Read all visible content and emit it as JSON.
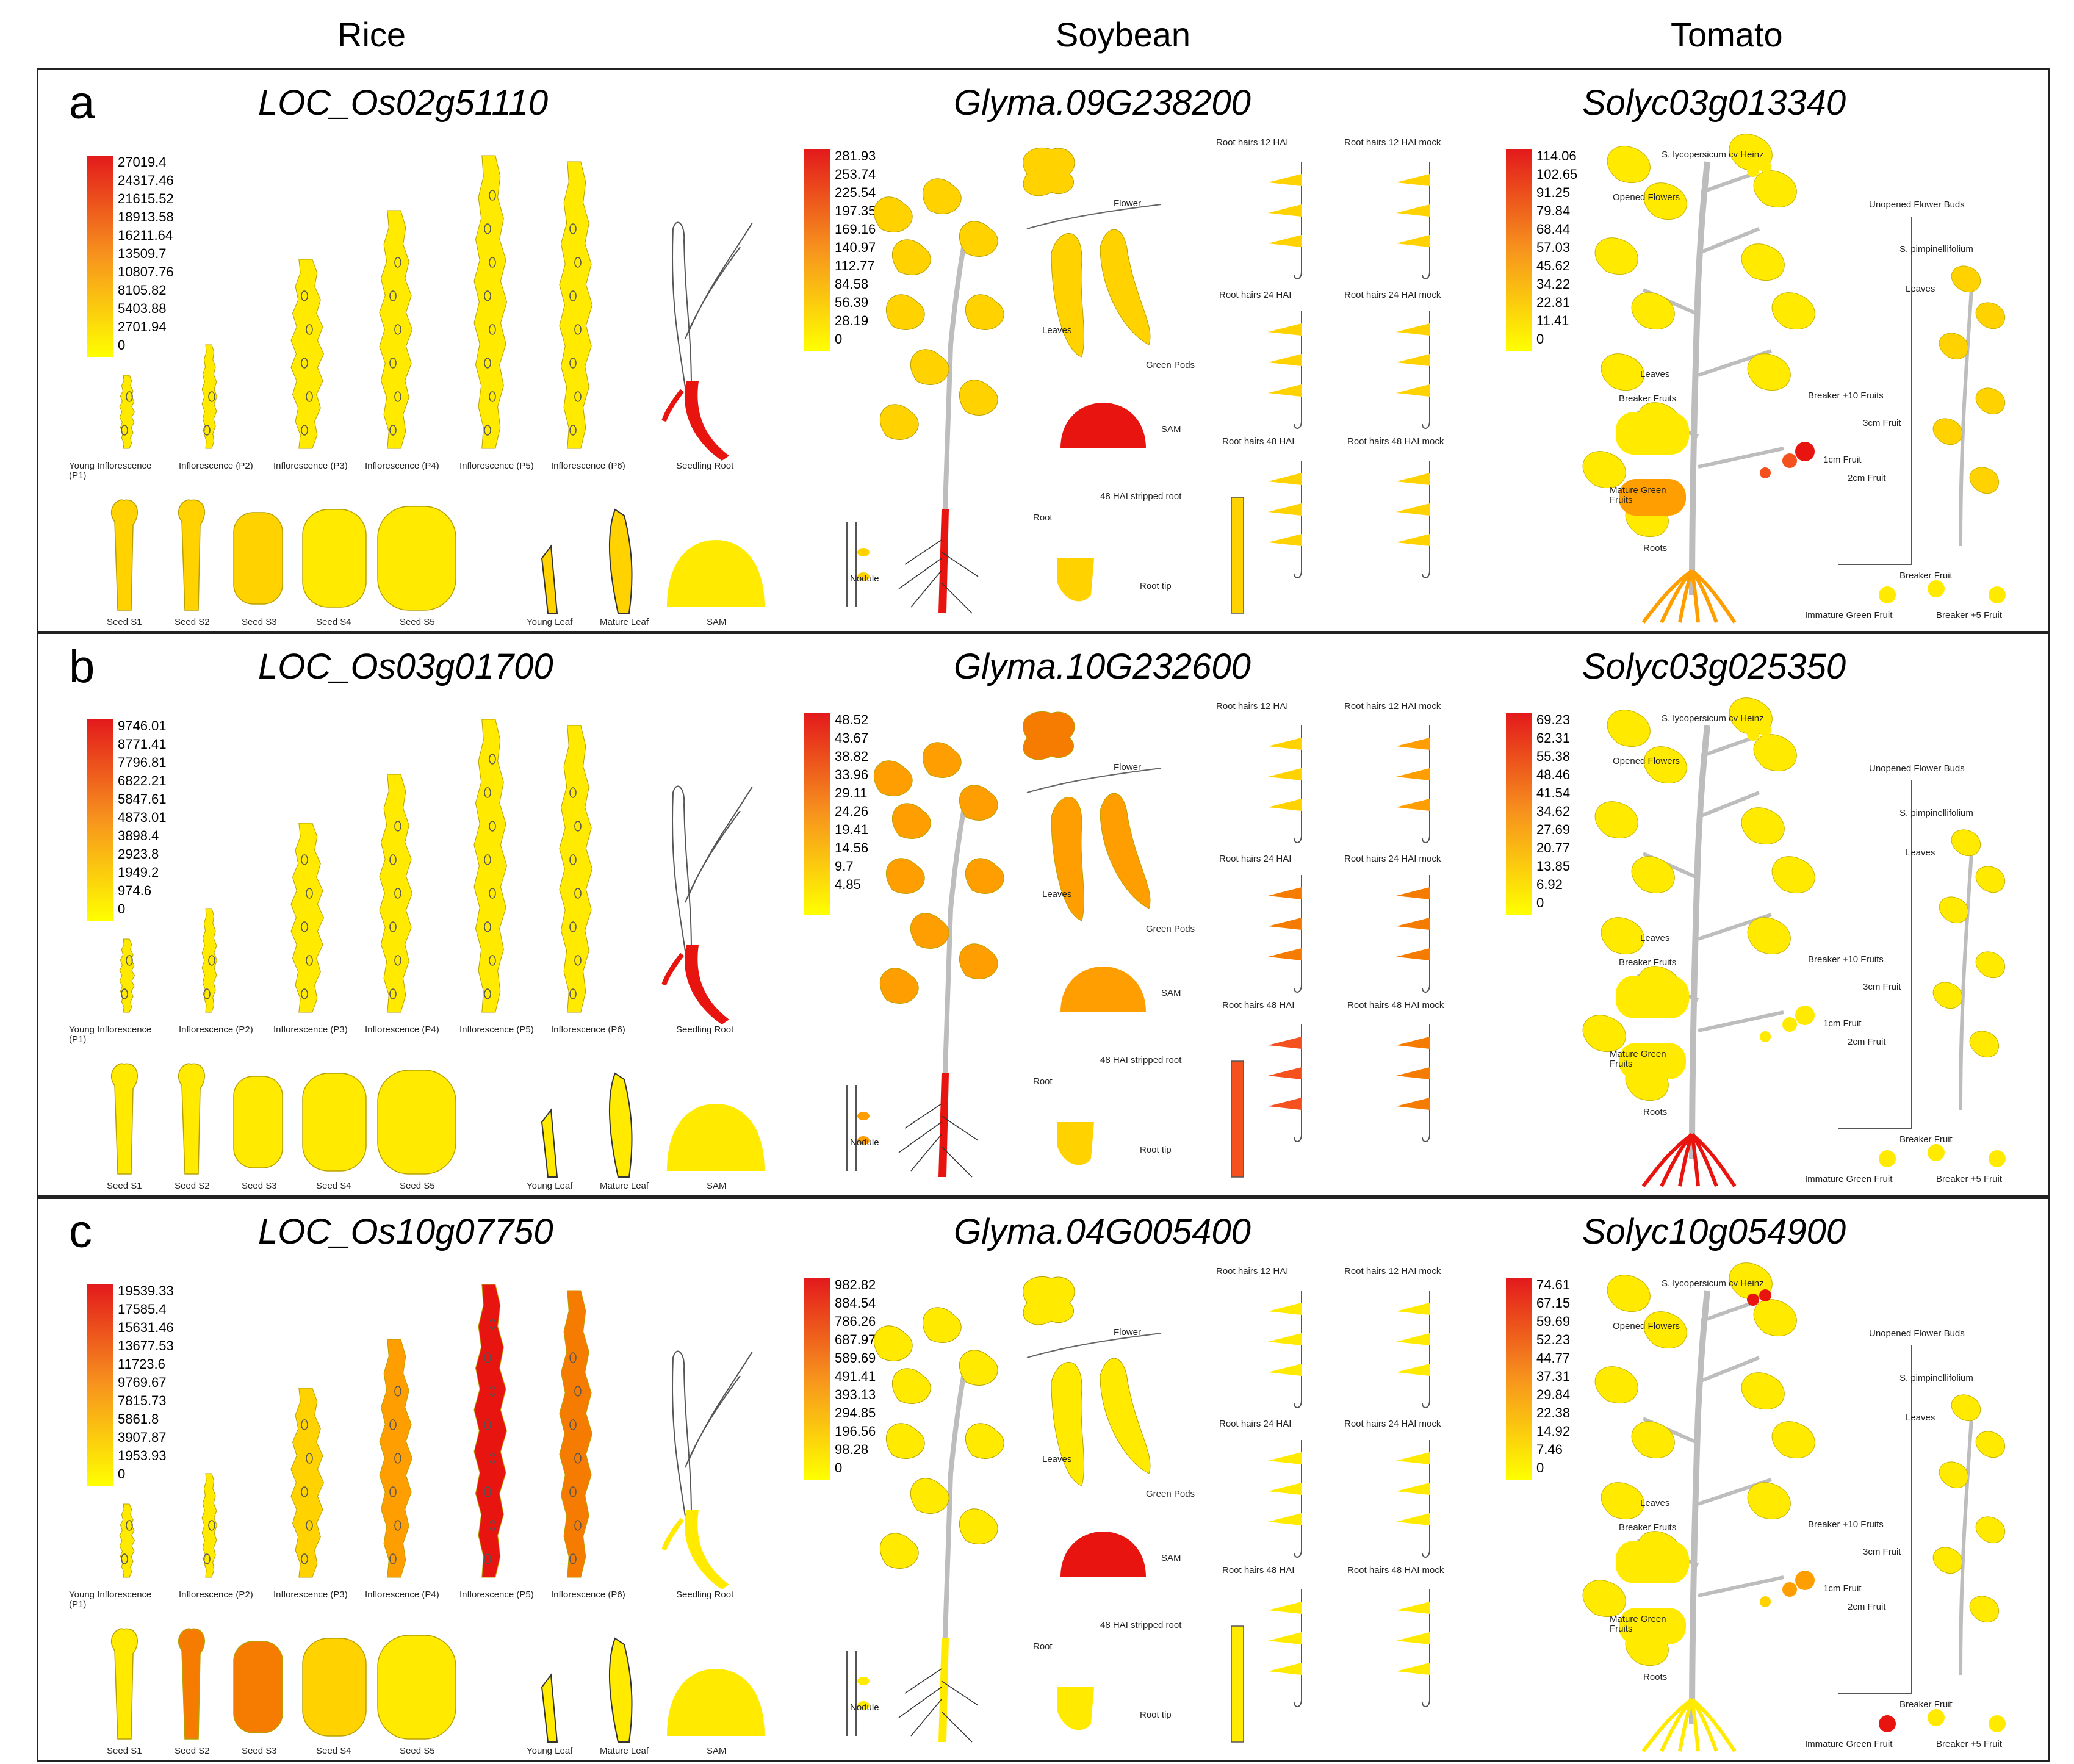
{
  "headers": {
    "rice": "Rice",
    "soybean": "Soybean",
    "tomato": "Tomato"
  },
  "rice_labels": {
    "young_infl": "Young Inflorescence",
    "young_infl_p1": "(P1)",
    "infl_p2": "Inflorescence (P2)",
    "infl_p3": "Inflorescence (P3)",
    "infl_p4": "Inflorescence (P4)",
    "infl_p5": "Inflorescence (P5)",
    "infl_p6": "Inflorescence (P6)",
    "seedling_root": "Seedling Root",
    "seed_s1": "Seed S1",
    "seed_s2": "Seed S2",
    "seed_s3": "Seed S3",
    "seed_s4": "Seed S4",
    "seed_s5": "Seed S5",
    "young_leaf": "Young Leaf",
    "mature_leaf": "Mature Leaf",
    "sam": "SAM"
  },
  "soy_labels": {
    "flower": "Flower",
    "leaves": "Leaves",
    "green_pods": "Green Pods",
    "sam": "SAM",
    "root": "Root",
    "nodule": "Nodule",
    "stripped_root": "48 HAI stripped root",
    "root_tip": "Root tip",
    "rh12": "Root hairs 12 HAI",
    "rh12m": "Root hairs 12 HAI mock",
    "rh24": "Root hairs 24 HAI",
    "rh24m": "Root hairs 24 HAI mock",
    "rh48": "Root hairs 48 HAI",
    "rh48m": "Root hairs 48 HAI mock"
  },
  "tomato_labels": {
    "heinz": "S. lycopersicum cv Heinz",
    "opened_flowers": "Opened Flowers",
    "unopened_buds": "Unopened Flower Buds",
    "leaves": "Leaves",
    "breaker_fruits": "Breaker Fruits",
    "breaker_10": "Breaker +10 Fruits",
    "fruit_3cm": "3cm Fruit",
    "fruit_1cm": "1cm Fruit",
    "fruit_2cm": "2cm Fruit",
    "mature_green_1": "Mature Green",
    "mature_green_2": "Fruits",
    "roots": "Roots",
    "pimp": "S. pimpinellifolium",
    "pimp_leaves": "Leaves",
    "breaker_fruit": "Breaker Fruit",
    "immature_green": "Immature Green Fruit",
    "breaker_5": "Breaker +5 Fruit"
  },
  "colors": {
    "scale_low": "#ffff00",
    "scale_high": "#e31a1c",
    "yellow": "#ffea00",
    "gold": "#ffd200",
    "orange": "#ff9e00",
    "dark_orange": "#f57c00",
    "red_orange": "#f4511e",
    "red": "#e8140f",
    "stem": "#bdbdbd"
  },
  "panels": [
    {
      "letter": "a",
      "rice": {
        "gene": "LOC_Os02g51110",
        "legend": [
          "27019.4",
          "24317.46",
          "21615.52",
          "18913.58",
          "16211.64",
          "13509.7",
          "10807.76",
          "8105.82",
          "5403.88",
          "2701.94",
          "0"
        ]
      },
      "soybean": {
        "gene": "Glyma.09G238200",
        "legend": [
          "281.93",
          "253.74",
          "225.54",
          "197.35",
          "169.16",
          "140.97",
          "112.77",
          "84.58",
          "56.39",
          "28.19",
          "0"
        ]
      },
      "tomato": {
        "gene": "Solyc03g013340",
        "legend": [
          "114.06",
          "102.65",
          "91.25",
          "79.84",
          "68.44",
          "57.03",
          "45.62",
          "34.22",
          "22.81",
          "11.41",
          "0"
        ]
      }
    },
    {
      "letter": "b",
      "rice": {
        "gene": "LOC_Os03g01700",
        "legend": [
          "9746.01",
          "8771.41",
          "7796.81",
          "6822.21",
          "5847.61",
          "4873.01",
          "3898.4",
          "2923.8",
          "1949.2",
          "974.6",
          "0"
        ]
      },
      "soybean": {
        "gene": "Glyma.10G232600",
        "legend": [
          "48.52",
          "43.67",
          "38.82",
          "33.96",
          "29.11",
          "24.26",
          "19.41",
          "14.56",
          "9.7",
          "4.85"
        ]
      },
      "tomato": {
        "gene": "Solyc03g025350",
        "legend": [
          "69.23",
          "62.31",
          "55.38",
          "48.46",
          "41.54",
          "34.62",
          "27.69",
          "20.77",
          "13.85",
          "6.92",
          "0"
        ]
      }
    },
    {
      "letter": "c",
      "rice": {
        "gene": "LOC_Os10g07750",
        "legend": [
          "19539.33",
          "17585.4",
          "15631.46",
          "13677.53",
          "11723.6",
          "9769.67",
          "7815.73",
          "5861.8",
          "3907.87",
          "1953.93",
          "0"
        ]
      },
      "soybean": {
        "gene": "Glyma.04G005400",
        "legend": [
          "982.82",
          "884.54",
          "786.26",
          "687.97",
          "589.69",
          "491.41",
          "393.13",
          "294.85",
          "196.56",
          "98.28",
          "0"
        ]
      },
      "tomato": {
        "gene": "Solyc10g054900",
        "legend": [
          "74.61",
          "67.15",
          "59.69",
          "52.23",
          "44.77",
          "37.31",
          "29.84",
          "22.38",
          "14.92",
          "7.46",
          "0"
        ]
      }
    }
  ]
}
